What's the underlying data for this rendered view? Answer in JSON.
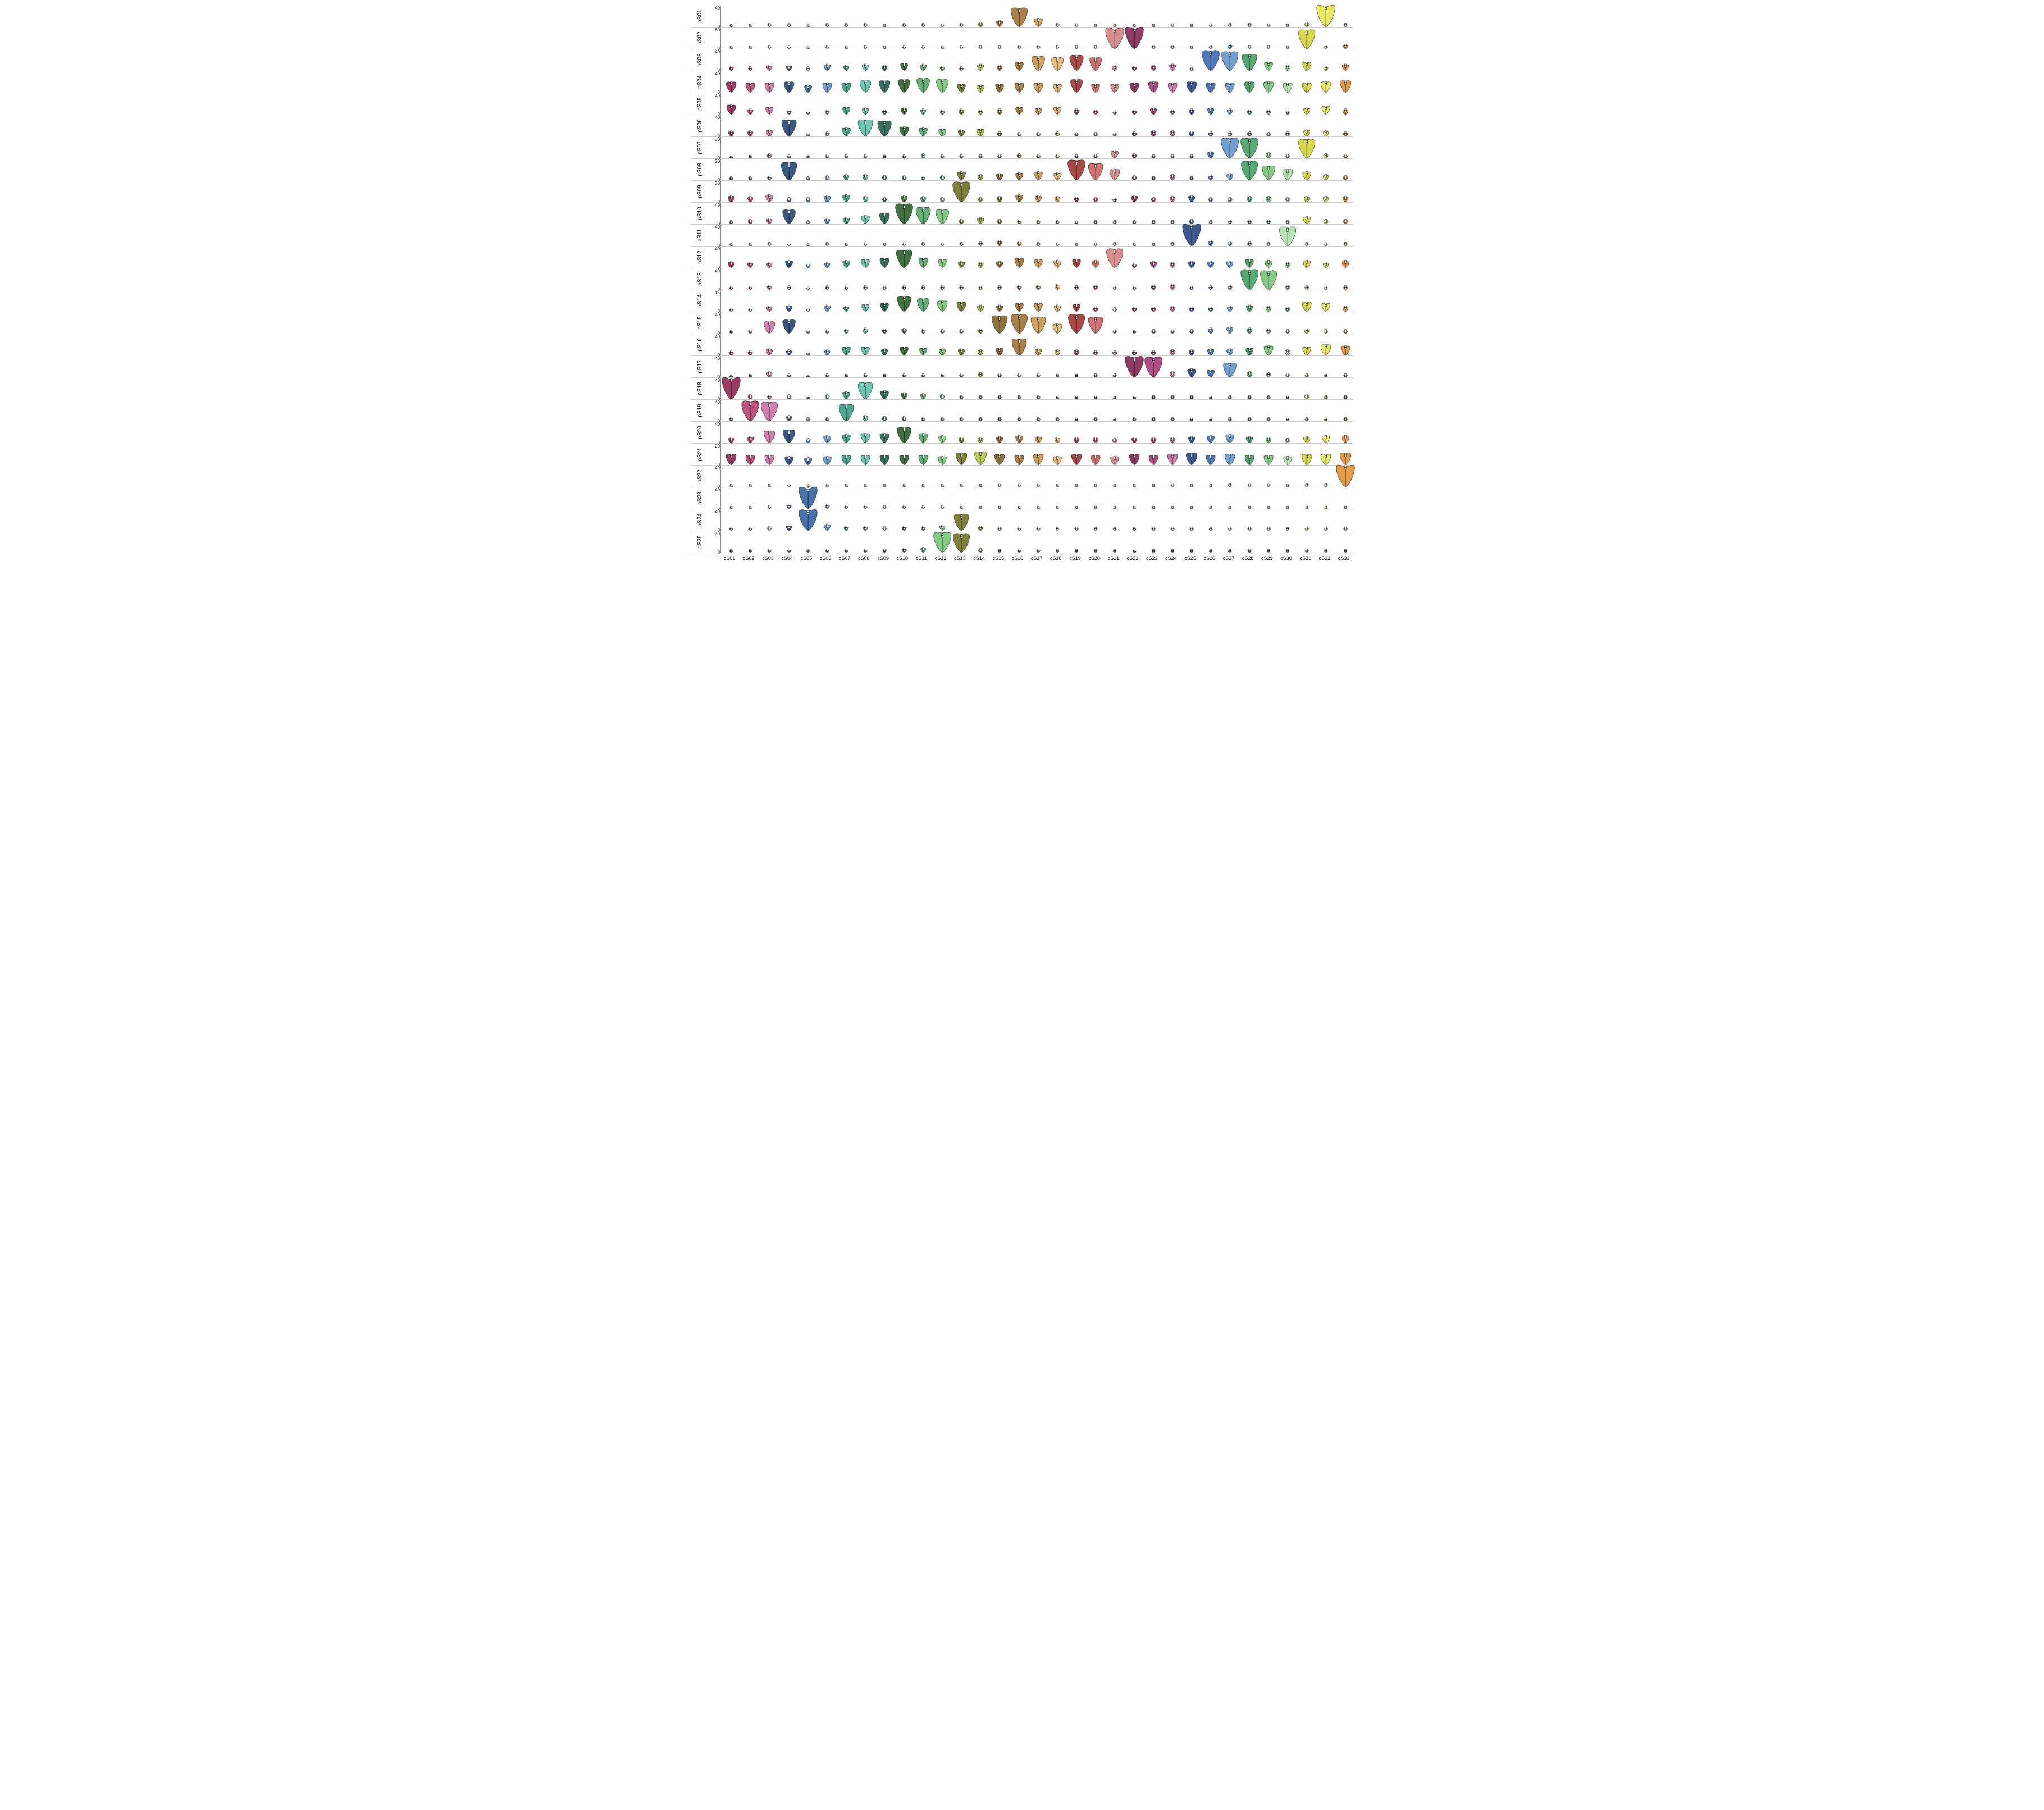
{
  "chart": {
    "type": "violin-grid",
    "background_color": "#ffffff",
    "axis_color": "#888888",
    "gridline_color": "#cccccc",
    "tick_fontsize": 8,
    "label_fontsize": 10,
    "columns": [
      "cS01",
      "cS02",
      "cS03",
      "cS04",
      "cS05",
      "cS06",
      "cS07",
      "cS08",
      "cS09",
      "cS10",
      "cS11",
      "cS12",
      "cS13",
      "cS14",
      "cS15",
      "cS16",
      "cS17",
      "cS18",
      "cS19",
      "cS20",
      "cS21",
      "cS22",
      "cS23",
      "cS24",
      "cS25",
      "cS26",
      "cS27",
      "cS28",
      "cS29",
      "cS30",
      "cS31",
      "cS32",
      "cS33"
    ],
    "colors": [
      "#8a1a4a",
      "#b0366a",
      "#c968a0",
      "#e0a6cc",
      "#1a3a6a",
      "#2a5a9a",
      "#5b8fc7",
      "#9ec5e8",
      "#1a6a5a",
      "#2e9a80",
      "#56c0a8",
      "#9be0d0",
      "#205720",
      "#3a8a3a",
      "#6fbf6f",
      "#a8e0a8",
      "#6a6a1a",
      "#9a9a2a",
      "#c5c55b",
      "#e6e69e",
      "#6a3a1a",
      "#9a5a2a",
      "#c78f5b",
      "#e8c59e",
      "#6a1a1a",
      "#9a2a2a",
      "#c75b5b",
      "#e89e9e",
      "#3a1a6a",
      "#5a2a9a",
      "#8f5bc7",
      "#c59ee8",
      "#e0e01a"
    ],
    "column_colors": {
      "cS01": "#8a1a4a",
      "cS02": "#b0366a",
      "cS03": "#c968a0",
      "cS04": "#1a3a6a",
      "cS05": "#2a5a9a",
      "cS06": "#5b8fc7",
      "cS07": "#2e9a80",
      "cS08": "#56c0a8",
      "cS09": "#1a5744",
      "cS10": "#205720",
      "cS11": "#4aa060",
      "cS12": "#6fbf6f",
      "cS13": "#6a6a1a",
      "cS14": "#b0c040",
      "cS15": "#7a5a1a",
      "cS16": "#9a6a2a",
      "cS17": "#c79040",
      "cS18": "#e0b060",
      "cS19": "#9a2a2a",
      "cS20": "#c75b5b",
      "cS21": "#d07a7a",
      "cS22": "#7a1a4a",
      "cS23": "#a03070",
      "cS24": "#c968a0",
      "cS25": "#1a3a7a",
      "cS26": "#3060b0",
      "cS27": "#5b8fc7",
      "cS28": "#3a9a5a",
      "cS29": "#6fbf6f",
      "cS30": "#a8e0a8",
      "cS31": "#d0d030",
      "cS32": "#e6e64a",
      "cS33": "#e08a2a"
    },
    "rows": [
      {
        "label": "pS01",
        "ymax": 40,
        "highlight": [
          "cS16",
          "cS32"
        ],
        "intensity": [
          0.05,
          0.05,
          0.1,
          0.1,
          0.05,
          0.1,
          0.1,
          0.1,
          0.05,
          0.1,
          0.1,
          0.08,
          0.1,
          0.15,
          0.25,
          0.8,
          0.35,
          0.1,
          0.08,
          0.05,
          0.05,
          0.05,
          0.05,
          0.08,
          0.05,
          0.08,
          0.1,
          0.1,
          0.08,
          0.05,
          0.15,
          0.95,
          0.1
        ]
      },
      {
        "label": "pS02",
        "ymax": 60,
        "highlight": [
          "cS21",
          "cS22",
          "cS31"
        ],
        "intensity": [
          0.05,
          0.05,
          0.08,
          0.08,
          0.05,
          0.08,
          0.05,
          0.08,
          0.05,
          0.08,
          0.08,
          0.05,
          0.08,
          0.08,
          0.08,
          0.1,
          0.1,
          0.08,
          0.08,
          0.08,
          0.9,
          0.95,
          0.1,
          0.1,
          0.05,
          0.1,
          0.15,
          0.08,
          0.08,
          0.05,
          0.8,
          0.1,
          0.15
        ]
      },
      {
        "label": "pS03",
        "ymax": 40,
        "highlight": [
          "cS17",
          "cS18",
          "cS19",
          "cS20",
          "cS26",
          "cS27",
          "cS28"
        ],
        "intensity": [
          0.15,
          0.12,
          0.2,
          0.2,
          0.12,
          0.25,
          0.2,
          0.25,
          0.2,
          0.3,
          0.25,
          0.15,
          0.12,
          0.25,
          0.2,
          0.35,
          0.6,
          0.55,
          0.65,
          0.55,
          0.2,
          0.15,
          0.2,
          0.25,
          0.1,
          0.85,
          0.8,
          0.7,
          0.35,
          0.2,
          0.35,
          0.15,
          0.25
        ]
      },
      {
        "label": "pS04",
        "ymax": 40,
        "highlight": [],
        "intensity": [
          0.45,
          0.4,
          0.4,
          0.45,
          0.3,
          0.4,
          0.4,
          0.5,
          0.5,
          0.55,
          0.6,
          0.55,
          0.35,
          0.3,
          0.35,
          0.4,
          0.4,
          0.35,
          0.55,
          0.35,
          0.35,
          0.4,
          0.45,
          0.4,
          0.45,
          0.4,
          0.4,
          0.45,
          0.45,
          0.4,
          0.4,
          0.45,
          0.5
        ]
      },
      {
        "label": "pS05",
        "ymax": 40,
        "highlight": [
          "cS01"
        ],
        "intensity": [
          0.4,
          0.2,
          0.3,
          0.15,
          0.1,
          0.15,
          0.3,
          0.25,
          0.15,
          0.25,
          0.2,
          0.15,
          0.2,
          0.15,
          0.2,
          0.3,
          0.25,
          0.3,
          0.2,
          0.15,
          0.1,
          0.15,
          0.25,
          0.15,
          0.2,
          0.25,
          0.2,
          0.15,
          0.15,
          0.1,
          0.25,
          0.35,
          0.2
        ]
      },
      {
        "label": "pS06",
        "ymax": 40,
        "highlight": [
          "cS04",
          "cS08",
          "cS09"
        ],
        "intensity": [
          0.2,
          0.2,
          0.25,
          0.7,
          0.1,
          0.15,
          0.35,
          0.7,
          0.65,
          0.4,
          0.35,
          0.3,
          0.25,
          0.3,
          0.15,
          0.12,
          0.12,
          0.15,
          0.1,
          0.12,
          0.1,
          0.15,
          0.2,
          0.2,
          0.18,
          0.15,
          0.15,
          0.15,
          0.12,
          0.15,
          0.25,
          0.2,
          0.15
        ]
      },
      {
        "label": "pS07",
        "ymax": 30,
        "highlight": [
          "cS27",
          "cS28",
          "cS31"
        ],
        "intensity": [
          0.05,
          0.08,
          0.15,
          0.1,
          0.08,
          0.12,
          0.1,
          0.1,
          0.08,
          0.1,
          0.15,
          0.1,
          0.1,
          0.1,
          0.12,
          0.15,
          0.12,
          0.12,
          0.1,
          0.12,
          0.3,
          0.15,
          0.1,
          0.1,
          0.1,
          0.25,
          0.85,
          0.85,
          0.2,
          0.12,
          0.8,
          0.15,
          0.12
        ]
      },
      {
        "label": "pS08",
        "ymax": 20,
        "highlight": [
          "cS04",
          "cS19",
          "cS20",
          "cS28",
          "cS29"
        ],
        "intensity": [
          0.1,
          0.1,
          0.12,
          0.75,
          0.1,
          0.15,
          0.2,
          0.2,
          0.15,
          0.15,
          0.12,
          0.15,
          0.35,
          0.2,
          0.25,
          0.3,
          0.35,
          0.3,
          0.85,
          0.7,
          0.45,
          0.15,
          0.1,
          0.2,
          0.1,
          0.18,
          0.25,
          0.8,
          0.6,
          0.45,
          0.35,
          0.2,
          0.15
        ]
      },
      {
        "label": "pS09",
        "ymax": 30,
        "highlight": [
          "cS13"
        ],
        "intensity": [
          0.25,
          0.2,
          0.3,
          0.15,
          0.15,
          0.25,
          0.3,
          0.2,
          0.15,
          0.25,
          0.2,
          0.15,
          0.85,
          0.15,
          0.2,
          0.3,
          0.25,
          0.2,
          0.18,
          0.15,
          0.12,
          0.25,
          0.15,
          0.2,
          0.25,
          0.15,
          0.15,
          0.2,
          0.2,
          0.15,
          0.2,
          0.2,
          0.2
        ]
      },
      {
        "label": "pS10",
        "ymax": 40,
        "highlight": [
          "cS04",
          "cS10",
          "cS11",
          "cS12"
        ],
        "intensity": [
          0.1,
          0.15,
          0.2,
          0.6,
          0.1,
          0.2,
          0.25,
          0.35,
          0.45,
          0.85,
          0.7,
          0.6,
          0.15,
          0.25,
          0.15,
          0.12,
          0.1,
          0.1,
          0.08,
          0.1,
          0.1,
          0.1,
          0.1,
          0.1,
          0.15,
          0.1,
          0.12,
          0.12,
          0.12,
          0.1,
          0.3,
          0.15,
          0.15
        ]
      },
      {
        "label": "pS11",
        "ymax": 40,
        "highlight": [
          "cS25",
          "cS30"
        ],
        "intensity": [
          0.05,
          0.05,
          0.1,
          0.08,
          0.05,
          0.1,
          0.05,
          0.08,
          0.05,
          0.08,
          0.1,
          0.08,
          0.1,
          0.12,
          0.2,
          0.15,
          0.1,
          0.08,
          0.05,
          0.08,
          0.1,
          0.05,
          0.05,
          0.1,
          0.95,
          0.2,
          0.15,
          0.12,
          0.1,
          0.8,
          0.1,
          0.08,
          0.1
        ]
      },
      {
        "label": "pS12",
        "ymax": 40,
        "highlight": [
          "cS10",
          "cS21"
        ],
        "intensity": [
          0.25,
          0.2,
          0.2,
          0.3,
          0.15,
          0.2,
          0.3,
          0.35,
          0.4,
          0.75,
          0.4,
          0.35,
          0.25,
          0.2,
          0.25,
          0.4,
          0.35,
          0.3,
          0.35,
          0.3,
          0.8,
          0.15,
          0.25,
          0.2,
          0.25,
          0.25,
          0.25,
          0.35,
          0.3,
          0.2,
          0.3,
          0.2,
          0.3
        ]
      },
      {
        "label": "pS13",
        "ymax": 40,
        "highlight": [
          "cS28",
          "cS29"
        ],
        "intensity": [
          0.1,
          0.1,
          0.15,
          0.12,
          0.08,
          0.12,
          0.1,
          0.12,
          0.1,
          0.12,
          0.12,
          0.12,
          0.12,
          0.1,
          0.12,
          0.15,
          0.15,
          0.2,
          0.12,
          0.15,
          0.1,
          0.1,
          0.15,
          0.2,
          0.1,
          0.12,
          0.15,
          0.85,
          0.8,
          0.15,
          0.12,
          0.1,
          0.12
        ]
      },
      {
        "label": "pS14",
        "ymax": 15,
        "highlight": [
          "cS10",
          "cS11"
        ],
        "intensity": [
          0.1,
          0.1,
          0.2,
          0.25,
          0.1,
          0.25,
          0.2,
          0.3,
          0.35,
          0.65,
          0.55,
          0.45,
          0.4,
          0.25,
          0.25,
          0.35,
          0.35,
          0.25,
          0.3,
          0.15,
          0.12,
          0.15,
          0.15,
          0.2,
          0.15,
          0.15,
          0.2,
          0.25,
          0.2,
          0.15,
          0.4,
          0.35,
          0.2
        ]
      },
      {
        "label": "pS15",
        "ymax": 40,
        "highlight": [
          "cS03",
          "cS04",
          "cS15",
          "cS16",
          "cS17",
          "cS19",
          "cS20"
        ],
        "intensity": [
          0.08,
          0.1,
          0.5,
          0.6,
          0.1,
          0.1,
          0.15,
          0.2,
          0.15,
          0.18,
          0.15,
          0.12,
          0.12,
          0.15,
          0.75,
          0.8,
          0.7,
          0.4,
          0.8,
          0.7,
          0.1,
          0.08,
          0.12,
          0.1,
          0.12,
          0.2,
          0.25,
          0.2,
          0.15,
          0.12,
          0.15,
          0.12,
          0.12
        ]
      },
      {
        "label": "pS16",
        "ymax": 40,
        "highlight": [
          "cS16"
        ],
        "intensity": [
          0.15,
          0.15,
          0.25,
          0.2,
          0.1,
          0.2,
          0.35,
          0.35,
          0.25,
          0.35,
          0.3,
          0.25,
          0.25,
          0.2,
          0.3,
          0.7,
          0.25,
          0.2,
          0.2,
          0.15,
          0.15,
          0.15,
          0.15,
          0.2,
          0.2,
          0.25,
          0.25,
          0.3,
          0.4,
          0.2,
          0.35,
          0.45,
          0.4
        ]
      },
      {
        "label": "pS17",
        "ymax": 40,
        "highlight": [
          "cS22",
          "cS23",
          "cS27"
        ],
        "intensity": [
          0.05,
          0.08,
          0.2,
          0.1,
          0.05,
          0.1,
          0.08,
          0.1,
          0.08,
          0.1,
          0.1,
          0.08,
          0.12,
          0.15,
          0.12,
          0.12,
          0.1,
          0.08,
          0.08,
          0.1,
          0.1,
          0.9,
          0.85,
          0.2,
          0.35,
          0.3,
          0.6,
          0.2,
          0.15,
          0.12,
          0.1,
          0.08,
          0.1
        ]
      },
      {
        "label": "pS18",
        "ymax": 40,
        "highlight": [
          "cS01",
          "cS08"
        ],
        "intensity": [
          0.95,
          0.15,
          0.12,
          0.15,
          0.08,
          0.15,
          0.3,
          0.7,
          0.35,
          0.25,
          0.2,
          0.15,
          0.1,
          0.1,
          0.1,
          0.1,
          0.1,
          0.08,
          0.08,
          0.08,
          0.05,
          0.08,
          0.1,
          0.1,
          0.1,
          0.08,
          0.1,
          0.1,
          0.1,
          0.08,
          0.15,
          0.1,
          0.1
        ]
      },
      {
        "label": "pS19",
        "ymax": 40,
        "highlight": [
          "cS02",
          "cS03",
          "cS07"
        ],
        "intensity": [
          0.12,
          0.85,
          0.8,
          0.2,
          0.1,
          0.1,
          0.7,
          0.2,
          0.15,
          0.15,
          0.12,
          0.1,
          0.1,
          0.1,
          0.1,
          0.1,
          0.1,
          0.1,
          0.08,
          0.1,
          0.08,
          0.1,
          0.1,
          0.1,
          0.08,
          0.08,
          0.1,
          0.1,
          0.1,
          0.08,
          0.1,
          0.08,
          0.1
        ]
      },
      {
        "label": "pS20",
        "ymax": 40,
        "highlight": [
          "cS03",
          "cS04",
          "cS10"
        ],
        "intensity": [
          0.2,
          0.25,
          0.5,
          0.55,
          0.15,
          0.3,
          0.35,
          0.4,
          0.4,
          0.65,
          0.4,
          0.3,
          0.2,
          0.2,
          0.25,
          0.3,
          0.25,
          0.2,
          0.2,
          0.2,
          0.15,
          0.2,
          0.2,
          0.2,
          0.25,
          0.3,
          0.35,
          0.25,
          0.2,
          0.15,
          0.25,
          0.3,
          0.3
        ]
      },
      {
        "label": "pS21",
        "ymax": 20,
        "highlight": [],
        "intensity": [
          0.45,
          0.4,
          0.4,
          0.35,
          0.3,
          0.35,
          0.4,
          0.4,
          0.4,
          0.4,
          0.4,
          0.35,
          0.5,
          0.55,
          0.45,
          0.4,
          0.45,
          0.35,
          0.45,
          0.4,
          0.35,
          0.45,
          0.4,
          0.45,
          0.5,
          0.4,
          0.45,
          0.4,
          0.4,
          0.35,
          0.45,
          0.45,
          0.5
        ]
      },
      {
        "label": "pS22",
        "ymax": 40,
        "highlight": [
          "cS33"
        ],
        "intensity": [
          0.05,
          0.05,
          0.05,
          0.08,
          0.05,
          0.05,
          0.05,
          0.05,
          0.05,
          0.05,
          0.05,
          0.05,
          0.05,
          0.05,
          0.08,
          0.08,
          0.08,
          0.05,
          0.05,
          0.05,
          0.05,
          0.05,
          0.05,
          0.08,
          0.05,
          0.05,
          0.1,
          0.08,
          0.08,
          0.05,
          0.1,
          0.1,
          0.95
        ]
      },
      {
        "label": "pS23",
        "ymax": 40,
        "highlight": [
          "cS05"
        ],
        "intensity": [
          0.05,
          0.05,
          0.08,
          0.15,
          0.95,
          0.15,
          0.1,
          0.1,
          0.08,
          0.1,
          0.08,
          0.08,
          0.05,
          0.05,
          0.05,
          0.05,
          0.05,
          0.05,
          0.05,
          0.05,
          0.05,
          0.05,
          0.05,
          0.05,
          0.05,
          0.05,
          0.05,
          0.05,
          0.05,
          0.05,
          0.05,
          0.05,
          0.05
        ]
      },
      {
        "label": "pS24",
        "ymax": 40,
        "highlight": [
          "cS05",
          "cS13"
        ],
        "intensity": [
          0.1,
          0.1,
          0.12,
          0.2,
          0.9,
          0.25,
          0.15,
          0.15,
          0.12,
          0.15,
          0.15,
          0.2,
          0.7,
          0.15,
          0.1,
          0.1,
          0.1,
          0.08,
          0.1,
          0.08,
          0.08,
          0.08,
          0.1,
          0.1,
          0.1,
          0.08,
          0.1,
          0.1,
          0.1,
          0.08,
          0.1,
          0.1,
          0.1
        ]
      },
      {
        "label": "pS25",
        "ymax": 30,
        "highlight": [
          "cS12",
          "cS13"
        ],
        "intensity": [
          0.08,
          0.08,
          0.1,
          0.1,
          0.08,
          0.1,
          0.1,
          0.1,
          0.1,
          0.15,
          0.18,
          0.85,
          0.8,
          0.12,
          0.08,
          0.1,
          0.1,
          0.08,
          0.08,
          0.08,
          0.08,
          0.05,
          0.08,
          0.08,
          0.08,
          0.08,
          0.08,
          0.1,
          0.08,
          0.08,
          0.1,
          0.08,
          0.08
        ]
      }
    ]
  }
}
